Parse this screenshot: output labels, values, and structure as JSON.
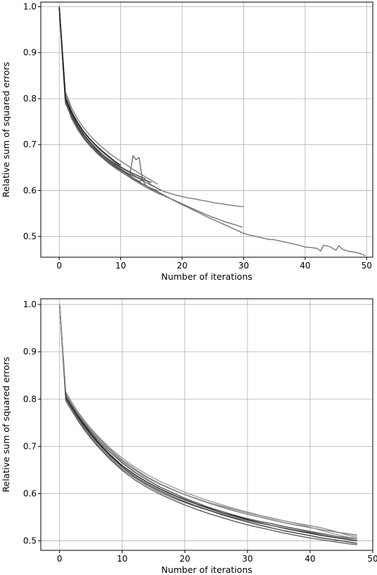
{
  "chart_data": [
    {
      "type": "line",
      "title": "",
      "xlabel": "Number of iterations",
      "ylabel": "Relative sum of squared errors",
      "xlim": [
        -3,
        51
      ],
      "ylim": [
        0.455,
        1.01
      ],
      "xticks": [
        0,
        10,
        20,
        30,
        40,
        50
      ],
      "yticks": [
        0.5,
        0.6,
        0.7,
        0.8,
        0.9,
        1.0
      ],
      "xtick_labels": [
        "0",
        "10",
        "20",
        "30",
        "40",
        "50"
      ],
      "ytick_labels": [
        "0.5",
        "0.6",
        "0.7",
        "0.8",
        "0.9",
        "1.0"
      ],
      "grid": true,
      "legend": "none",
      "series": [
        {
          "color": "#707070",
          "x": [
            0,
            1,
            2,
            3,
            4,
            5,
            6,
            7,
            8,
            9,
            10,
            11,
            12,
            13,
            14,
            15,
            16,
            17,
            18,
            19,
            20,
            21,
            22,
            23,
            24,
            25,
            26,
            27,
            28,
            29,
            30,
            31,
            32,
            33,
            34,
            35,
            36,
            37,
            38,
            39,
            40,
            41,
            42,
            42.5,
            43,
            44,
            45,
            45.5,
            46,
            47,
            48,
            49,
            49.8
          ],
          "y": [
            1.0,
            0.8,
            0.76,
            0.735,
            0.715,
            0.7,
            0.688,
            0.675,
            0.664,
            0.654,
            0.645,
            0.636,
            0.627,
            0.619,
            0.611,
            0.604,
            0.597,
            0.59,
            0.583,
            0.576,
            0.569,
            0.563,
            0.556,
            0.55,
            0.543,
            0.537,
            0.531,
            0.525,
            0.519,
            0.513,
            0.507,
            0.503,
            0.5,
            0.497,
            0.494,
            0.493,
            0.49,
            0.487,
            0.484,
            0.481,
            0.477,
            0.476,
            0.474,
            0.468,
            0.481,
            0.478,
            0.47,
            0.48,
            0.473,
            0.468,
            0.466,
            0.463,
            0.458
          ]
        },
        {
          "color": "#6e6e6e",
          "x": [
            0,
            1,
            2,
            3,
            4,
            5,
            6,
            7,
            8,
            9,
            10,
            11,
            12,
            13,
            14,
            15,
            16,
            17,
            18,
            19,
            20,
            21,
            22,
            23,
            24,
            25,
            26,
            27,
            28,
            29,
            29.8
          ],
          "y": [
            1.0,
            0.795,
            0.757,
            0.733,
            0.713,
            0.698,
            0.685,
            0.673,
            0.662,
            0.652,
            0.642,
            0.633,
            0.624,
            0.616,
            0.608,
            0.601,
            0.594,
            0.589,
            0.583,
            0.577,
            0.571,
            0.565,
            0.559,
            0.553,
            0.547,
            0.542,
            0.537,
            0.532,
            0.528,
            0.524,
            0.52
          ]
        },
        {
          "color": "#757575",
          "x": [
            0,
            1,
            2,
            3,
            4,
            5,
            6,
            7,
            8,
            9,
            10,
            11,
            12,
            13,
            14,
            15,
            16,
            17,
            18,
            19,
            20,
            21,
            22,
            23,
            24,
            25,
            26,
            27,
            28,
            29,
            30
          ],
          "y": [
            1.0,
            0.81,
            0.774,
            0.747,
            0.727,
            0.711,
            0.697,
            0.684,
            0.673,
            0.662,
            0.652,
            0.643,
            0.634,
            0.626,
            0.618,
            0.611,
            0.605,
            0.598,
            0.594,
            0.59,
            0.587,
            0.584,
            0.582,
            0.579,
            0.577,
            0.574,
            0.572,
            0.57,
            0.568,
            0.566,
            0.565
          ]
        },
        {
          "color": "#666666",
          "x": [
            0,
            1,
            2,
            3,
            4,
            5,
            6,
            7,
            8,
            9,
            10,
            11,
            11.5,
            12,
            12.5,
            13,
            13.5,
            14,
            15,
            16,
            17,
            17.5
          ],
          "y": [
            1.0,
            0.805,
            0.77,
            0.744,
            0.723,
            0.706,
            0.692,
            0.679,
            0.668,
            0.658,
            0.648,
            0.639,
            0.634,
            0.676,
            0.667,
            0.672,
            0.625,
            0.612,
            0.603,
            0.598,
            0.59,
            0.585
          ]
        },
        {
          "color": "#5e5e5e",
          "x": [
            0,
            1,
            2,
            3,
            4,
            5,
            6,
            7,
            8,
            9,
            10,
            11,
            12,
            13,
            14,
            15,
            16,
            16.5
          ],
          "y": [
            1.0,
            0.8,
            0.768,
            0.742,
            0.722,
            0.706,
            0.692,
            0.678,
            0.666,
            0.656,
            0.646,
            0.637,
            0.628,
            0.62,
            0.624,
            0.612,
            0.605,
            0.6
          ]
        },
        {
          "color": "#4a4a4a",
          "x": [
            0,
            1,
            2,
            3,
            4,
            5,
            6,
            7,
            8,
            9,
            10,
            11,
            12,
            13,
            14,
            15
          ],
          "y": [
            1.0,
            0.79,
            0.76,
            0.736,
            0.716,
            0.7,
            0.686,
            0.673,
            0.662,
            0.653,
            0.645,
            0.638,
            0.632,
            0.627,
            0.622,
            0.618
          ]
        },
        {
          "color": "#7a7a7a",
          "x": [
            0,
            1,
            2,
            3,
            4,
            5,
            6,
            7,
            8,
            9,
            10,
            11,
            12,
            13,
            14,
            15,
            16
          ],
          "y": [
            1.0,
            0.815,
            0.78,
            0.755,
            0.736,
            0.72,
            0.706,
            0.694,
            0.683,
            0.673,
            0.664,
            0.655,
            0.646,
            0.638,
            0.63,
            0.622,
            0.614
          ]
        },
        {
          "color": "#3a3a3a",
          "x": [
            0,
            1,
            2,
            3,
            4,
            5,
            6,
            7,
            8,
            9,
            10,
            11,
            12,
            13,
            14
          ],
          "y": [
            1.0,
            0.798,
            0.764,
            0.74,
            0.72,
            0.704,
            0.69,
            0.678,
            0.668,
            0.659,
            0.651,
            0.644,
            0.637,
            0.631,
            0.626
          ]
        },
        {
          "color": "#6a6a6a",
          "x": [
            0,
            1,
            2,
            3,
            4,
            5,
            6,
            7,
            8,
            9,
            10,
            11,
            12,
            13,
            14,
            15,
            16
          ],
          "y": [
            1.0,
            0.793,
            0.758,
            0.733,
            0.713,
            0.697,
            0.683,
            0.671,
            0.66,
            0.65,
            0.641,
            0.633,
            0.625,
            0.618,
            0.611,
            0.605,
            0.6
          ]
        },
        {
          "color": "#111111",
          "x": [
            0,
            0.5,
            1,
            1.5,
            2,
            3,
            4,
            5,
            6,
            7,
            8,
            9,
            10
          ],
          "y": [
            1.0,
            0.9,
            0.8,
            0.785,
            0.77,
            0.748,
            0.728,
            0.712,
            0.698,
            0.686,
            0.675,
            0.664,
            0.655
          ]
        }
      ]
    },
    {
      "type": "line",
      "title": "",
      "xlabel": "Number of iterations",
      "ylabel": "Relative sum of squared errors",
      "xlim": [
        -3,
        50
      ],
      "ylim": [
        0.48,
        1.012
      ],
      "xticks": [
        0,
        10,
        20,
        30,
        40,
        50
      ],
      "yticks": [
        0.5,
        0.6,
        0.7,
        0.8,
        0.9,
        1.0
      ],
      "xtick_labels": [
        "0",
        "10",
        "20",
        "30",
        "40",
        "50"
      ],
      "ytick_labels": [
        "0.5",
        "0.6",
        "0.7",
        "0.8",
        "0.9",
        "1.0"
      ],
      "grid": true,
      "legend": "none",
      "series": [
        {
          "color": "#111111",
          "x": [
            0,
            1,
            2,
            3,
            4,
            5,
            6,
            8,
            10,
            12,
            14,
            16,
            18,
            20,
            22,
            24,
            26,
            28,
            30,
            32,
            34,
            36,
            38,
            40,
            42,
            44,
            46,
            47.5
          ],
          "y": [
            1.0,
            0.81,
            0.783,
            0.762,
            0.744,
            0.727,
            0.711,
            0.683,
            0.659,
            0.64,
            0.624,
            0.61,
            0.598,
            0.587,
            0.577,
            0.568,
            0.559,
            0.552,
            0.545,
            0.538,
            0.532,
            0.526,
            0.521,
            0.516,
            0.511,
            0.507,
            0.503,
            0.5
          ]
        },
        {
          "color": "#444444",
          "x": [
            0,
            1,
            2,
            3,
            4,
            5,
            6,
            8,
            10,
            12,
            14,
            16,
            18,
            20,
            22,
            24,
            26,
            28,
            30,
            32,
            34,
            36,
            38,
            40,
            42,
            44,
            46,
            47.5
          ],
          "y": [
            1.0,
            0.805,
            0.785,
            0.765,
            0.747,
            0.731,
            0.715,
            0.688,
            0.665,
            0.645,
            0.629,
            0.614,
            0.602,
            0.59,
            0.58,
            0.57,
            0.562,
            0.554,
            0.547,
            0.541,
            0.536,
            0.53,
            0.525,
            0.52,
            0.515,
            0.51,
            0.506,
            0.504
          ]
        },
        {
          "color": "#666666",
          "x": [
            0,
            1,
            2,
            3,
            4,
            5,
            6,
            8,
            10,
            12,
            14,
            16,
            18,
            20,
            22,
            24,
            26,
            28,
            30,
            32,
            34,
            36,
            38,
            40,
            42,
            44,
            46,
            47.5
          ],
          "y": [
            1.0,
            0.8,
            0.778,
            0.756,
            0.737,
            0.72,
            0.704,
            0.676,
            0.652,
            0.633,
            0.617,
            0.603,
            0.591,
            0.581,
            0.572,
            0.564,
            0.556,
            0.549,
            0.543,
            0.537,
            0.532,
            0.527,
            0.522,
            0.518,
            0.514,
            0.51,
            0.507,
            0.505
          ]
        },
        {
          "color": "#777777",
          "x": [
            0,
            1,
            2,
            3,
            4,
            5,
            6,
            8,
            10,
            12,
            14,
            16,
            18,
            20,
            22,
            24,
            26,
            28,
            30,
            32,
            34,
            36,
            38,
            40,
            42,
            44,
            46,
            47.5
          ],
          "y": [
            1.0,
            0.812,
            0.79,
            0.77,
            0.752,
            0.736,
            0.721,
            0.694,
            0.671,
            0.652,
            0.635,
            0.621,
            0.609,
            0.598,
            0.588,
            0.579,
            0.571,
            0.563,
            0.556,
            0.55,
            0.544,
            0.538,
            0.533,
            0.528,
            0.523,
            0.519,
            0.515,
            0.512
          ]
        },
        {
          "color": "#555555",
          "x": [
            0,
            1,
            2,
            3,
            4,
            5,
            6,
            8,
            10,
            12,
            14,
            16,
            18,
            20,
            22,
            24,
            26,
            28,
            30,
            32,
            34,
            36,
            38,
            40,
            42,
            44,
            46,
            47.5
          ],
          "y": [
            1.0,
            0.796,
            0.774,
            0.753,
            0.734,
            0.717,
            0.701,
            0.673,
            0.649,
            0.629,
            0.613,
            0.599,
            0.587,
            0.576,
            0.566,
            0.557,
            0.549,
            0.541,
            0.534,
            0.528,
            0.522,
            0.516,
            0.511,
            0.506,
            0.502,
            0.498,
            0.494,
            0.492
          ]
        },
        {
          "color": "#888888",
          "x": [
            0,
            1,
            2,
            3,
            4,
            5,
            6,
            8,
            10,
            12,
            14,
            16,
            18,
            20,
            22,
            24,
            26,
            28,
            30,
            32,
            34,
            36,
            38,
            40,
            42,
            44,
            46,
            47.5
          ],
          "y": [
            1.0,
            0.808,
            0.788,
            0.768,
            0.75,
            0.734,
            0.719,
            0.692,
            0.668,
            0.649,
            0.633,
            0.62,
            0.608,
            0.598,
            0.589,
            0.58,
            0.573,
            0.566,
            0.559,
            0.553,
            0.547,
            0.542,
            0.537,
            0.532,
            0.527,
            0.52,
            0.512,
            0.508
          ]
        },
        {
          "color": "#333333",
          "x": [
            0,
            1,
            2,
            3,
            4,
            5,
            6,
            8,
            10,
            12,
            14,
            16,
            18,
            20,
            22,
            24,
            26,
            28,
            30,
            32,
            34,
            36,
            38,
            40,
            42,
            44,
            46,
            47.5
          ],
          "y": [
            1.0,
            0.803,
            0.781,
            0.76,
            0.741,
            0.724,
            0.708,
            0.68,
            0.656,
            0.636,
            0.62,
            0.606,
            0.594,
            0.583,
            0.573,
            0.564,
            0.555,
            0.547,
            0.54,
            0.533,
            0.527,
            0.521,
            0.516,
            0.511,
            0.506,
            0.502,
            0.498,
            0.495
          ]
        },
        {
          "color": "#999999",
          "x": [
            0,
            1,
            2,
            3,
            4,
            5,
            6,
            8,
            10,
            12,
            14,
            16,
            18,
            20,
            22,
            24,
            26,
            28,
            30,
            32,
            34,
            36,
            38,
            40,
            42,
            44,
            46,
            47.5
          ],
          "y": [
            1.0,
            0.815,
            0.792,
            0.772,
            0.754,
            0.738,
            0.723,
            0.697,
            0.675,
            0.656,
            0.64,
            0.626,
            0.614,
            0.603,
            0.593,
            0.584,
            0.576,
            0.568,
            0.561,
            0.554,
            0.548,
            0.542,
            0.536,
            0.529,
            0.521,
            0.514,
            0.508,
            0.505
          ]
        }
      ]
    }
  ]
}
